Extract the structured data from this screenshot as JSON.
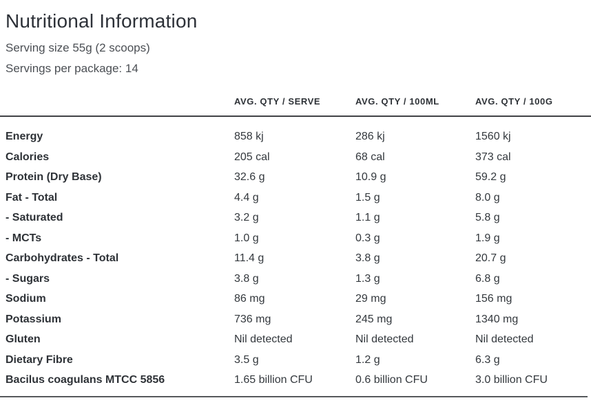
{
  "header": {
    "title": "Nutritional Information",
    "serving_size": "Serving size 55g (2 scoops)",
    "servings_per_package": "Servings per package: 14"
  },
  "table": {
    "columns": [
      "AVG. QTY / SERVE",
      "AVG. QTY / 100ML",
      "AVG. QTY / 100G"
    ],
    "rows": [
      {
        "label": "Energy",
        "serve": "858 kj",
        "per100ml": "286 kj",
        "per100g": "1560 kj"
      },
      {
        "label": "Calories",
        "serve": "205 cal",
        "per100ml": "68 cal",
        "per100g": "373 cal"
      },
      {
        "label": "Protein (Dry Base)",
        "serve": "32.6 g",
        "per100ml": "10.9 g",
        "per100g": "59.2 g"
      },
      {
        "label": "Fat - Total",
        "serve": "4.4 g",
        "per100ml": "1.5 g",
        "per100g": "8.0 g"
      },
      {
        "label": "- Saturated",
        "serve": "3.2 g",
        "per100ml": "1.1 g",
        "per100g": "5.8 g"
      },
      {
        "label": "- MCTs",
        "serve": "1.0 g",
        "per100ml": "0.3 g",
        "per100g": "1.9 g"
      },
      {
        "label": "Carbohydrates - Total",
        "serve": "11.4 g",
        "per100ml": "3.8 g",
        "per100g": "20.7 g"
      },
      {
        "label": "- Sugars",
        "serve": "3.8 g",
        "per100ml": "1.3 g",
        "per100g": "6.8 g"
      },
      {
        "label": "Sodium",
        "serve": "86 mg",
        "per100ml": "29 mg",
        "per100g": "156 mg"
      },
      {
        "label": "Potassium",
        "serve": "736 mg",
        "per100ml": "245 mg",
        "per100g": "1340 mg"
      },
      {
        "label": "Gluten",
        "serve": "Nil detected",
        "per100ml": "Nil detected",
        "per100g": "Nil detected"
      },
      {
        "label": "Dietary Fibre",
        "serve": "3.5 g",
        "per100ml": "1.2 g",
        "per100g": "6.3 g"
      },
      {
        "label": "Bacilus coagulans MTCC 5856",
        "serve": "1.65 billion CFU",
        "per100ml": "0.6 billion CFU",
        "per100g": "3.0 billion CFU"
      }
    ]
  },
  "colors": {
    "title_text": "#2d3138",
    "body_text": "#33383d",
    "header_rule": "#404245",
    "bottom_rule": "#55585b",
    "background": "#ffffff"
  }
}
